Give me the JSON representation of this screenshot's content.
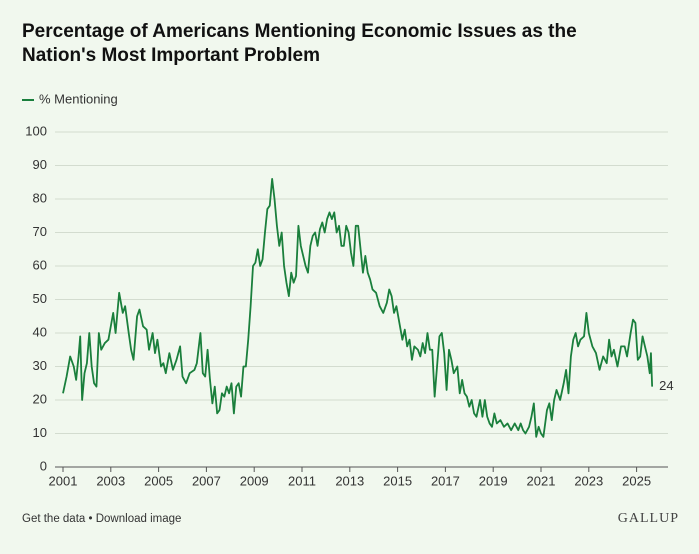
{
  "chart_data": {
    "type": "line",
    "title": "Percentage of Americans Mentioning Economic Issues as the Nation's Most Important Problem",
    "x": [
      2001.0,
      2001.15,
      2001.3,
      2001.45,
      2001.55,
      2001.65,
      2001.72,
      2001.8,
      2001.9,
      2002.0,
      2002.1,
      2002.2,
      2002.3,
      2002.4,
      2002.5,
      2002.6,
      2002.75,
      2002.9,
      2003.1,
      2003.2,
      2003.35,
      2003.5,
      2003.6,
      2003.75,
      2003.85,
      2003.95,
      2004.1,
      2004.2,
      2004.35,
      2004.5,
      2004.6,
      2004.75,
      2004.85,
      2004.95,
      2005.1,
      2005.2,
      2005.3,
      2005.45,
      2005.6,
      2005.75,
      2005.9,
      2006.0,
      2006.15,
      2006.3,
      2006.5,
      2006.6,
      2006.75,
      2006.85,
      2006.95,
      2007.05,
      2007.15,
      2007.25,
      2007.35,
      2007.45,
      2007.55,
      2007.65,
      2007.75,
      2007.85,
      2007.95,
      2008.05,
      2008.15,
      2008.25,
      2008.35,
      2008.45,
      2008.55,
      2008.65,
      2008.75,
      2008.85,
      2008.95,
      2009.05,
      2009.15,
      2009.25,
      2009.35,
      2009.45,
      2009.55,
      2009.65,
      2009.75,
      2009.85,
      2009.95,
      2010.05,
      2010.15,
      2010.25,
      2010.35,
      2010.45,
      2010.55,
      2010.65,
      2010.75,
      2010.85,
      2010.95,
      2011.05,
      2011.15,
      2011.25,
      2011.35,
      2011.45,
      2011.55,
      2011.65,
      2011.75,
      2011.85,
      2011.95,
      2012.05,
      2012.15,
      2012.25,
      2012.35,
      2012.45,
      2012.55,
      2012.65,
      2012.75,
      2012.85,
      2012.95,
      2013.05,
      2013.15,
      2013.25,
      2013.35,
      2013.45,
      2013.55,
      2013.65,
      2013.75,
      2013.85,
      2013.95,
      2014.1,
      2014.25,
      2014.4,
      2014.55,
      2014.65,
      2014.75,
      2014.85,
      2014.95,
      2015.1,
      2015.2,
      2015.3,
      2015.4,
      2015.5,
      2015.6,
      2015.7,
      2015.85,
      2015.95,
      2016.05,
      2016.15,
      2016.25,
      2016.35,
      2016.45,
      2016.55,
      2016.65,
      2016.75,
      2016.85,
      2016.95,
      2017.05,
      2017.15,
      2017.25,
      2017.35,
      2017.5,
      2017.6,
      2017.7,
      2017.8,
      2017.9,
      2018.0,
      2018.1,
      2018.2,
      2018.3,
      2018.45,
      2018.55,
      2018.65,
      2018.75,
      2018.85,
      2018.95,
      2019.05,
      2019.15,
      2019.3,
      2019.45,
      2019.6,
      2019.75,
      2019.9,
      2020.05,
      2020.15,
      2020.25,
      2020.35,
      2020.5,
      2020.6,
      2020.7,
      2020.8,
      2020.9,
      2021.0,
      2021.1,
      2021.25,
      2021.35,
      2021.45,
      2021.55,
      2021.65,
      2021.8,
      2021.95,
      2022.05,
      2022.15,
      2022.25,
      2022.35,
      2022.45,
      2022.55,
      2022.65,
      2022.8,
      2022.9,
      2023.0,
      2023.15,
      2023.3,
      2023.45,
      2023.6,
      2023.75,
      2023.85,
      2023.95,
      2024.05,
      2024.2,
      2024.35,
      2024.5,
      2024.6,
      2024.75,
      2024.85,
      2024.95,
      2025.05,
      2025.15,
      2025.25,
      2025.35,
      2025.45,
      2025.55,
      2025.6,
      2025.65
    ],
    "series": [
      {
        "name": "% Mentioning",
        "color": "#1a7f3c",
        "values": [
          22,
          27,
          33,
          30,
          26,
          33,
          39,
          20,
          28,
          31,
          40,
          30,
          25,
          24,
          40,
          35,
          37,
          38,
          46,
          40,
          52,
          46,
          48,
          40,
          35,
          32,
          45,
          47,
          42,
          41,
          35,
          40,
          34,
          38,
          30,
          31,
          28,
          34,
          29,
          32,
          36,
          27,
          25,
          28,
          29,
          31,
          40,
          28,
          27,
          35,
          26,
          19,
          24,
          16,
          17,
          22,
          21,
          24,
          22,
          25,
          16,
          24,
          25,
          21,
          30,
          30,
          38,
          48,
          60,
          61,
          65,
          60,
          62,
          70,
          77,
          78,
          86,
          80,
          72,
          66,
          70,
          60,
          55,
          51,
          58,
          55,
          57,
          72,
          66,
          63,
          60,
          58,
          66,
          69,
          70,
          66,
          71,
          73,
          70,
          74,
          76,
          74,
          76,
          70,
          72,
          66,
          66,
          72,
          70,
          64,
          60,
          72,
          72,
          65,
          58,
          63,
          58,
          56,
          53,
          52,
          48,
          46,
          49,
          53,
          51,
          46,
          48,
          42,
          38,
          41,
          36,
          38,
          32,
          36,
          35,
          33,
          37,
          34,
          40,
          35,
          35,
          21,
          30,
          39,
          40,
          34,
          23,
          35,
          32,
          28,
          30,
          22,
          26,
          22,
          21,
          18,
          20,
          16,
          15,
          20,
          15,
          20,
          15,
          13,
          12,
          16,
          13,
          14,
          12,
          13,
          11,
          13,
          11,
          13,
          11,
          10,
          12,
          15,
          19,
          9,
          12,
          10,
          9,
          17,
          19,
          14,
          20,
          23,
          20,
          25,
          29,
          22,
          33,
          38,
          40,
          36,
          38,
          39,
          46,
          40,
          36,
          34,
          29,
          33,
          31,
          38,
          33,
          35,
          30,
          36,
          36,
          33,
          40,
          44,
          43,
          32,
          33,
          39,
          36,
          33,
          28,
          34,
          24
        ]
      }
    ],
    "xlim": [
      2001,
      2026
    ],
    "xticks": [
      2001,
      2003,
      2005,
      2007,
      2009,
      2011,
      2013,
      2015,
      2017,
      2019,
      2021,
      2023,
      2025
    ],
    "ylim": [
      0,
      100
    ],
    "yticks": [
      0,
      10,
      20,
      30,
      40,
      50,
      60,
      70,
      80,
      90,
      100
    ],
    "grid": true,
    "legend": "top-left"
  },
  "footer": {
    "links": [
      "Get the data",
      "Download image"
    ],
    "separator": "•",
    "brand": "GALLUP"
  }
}
